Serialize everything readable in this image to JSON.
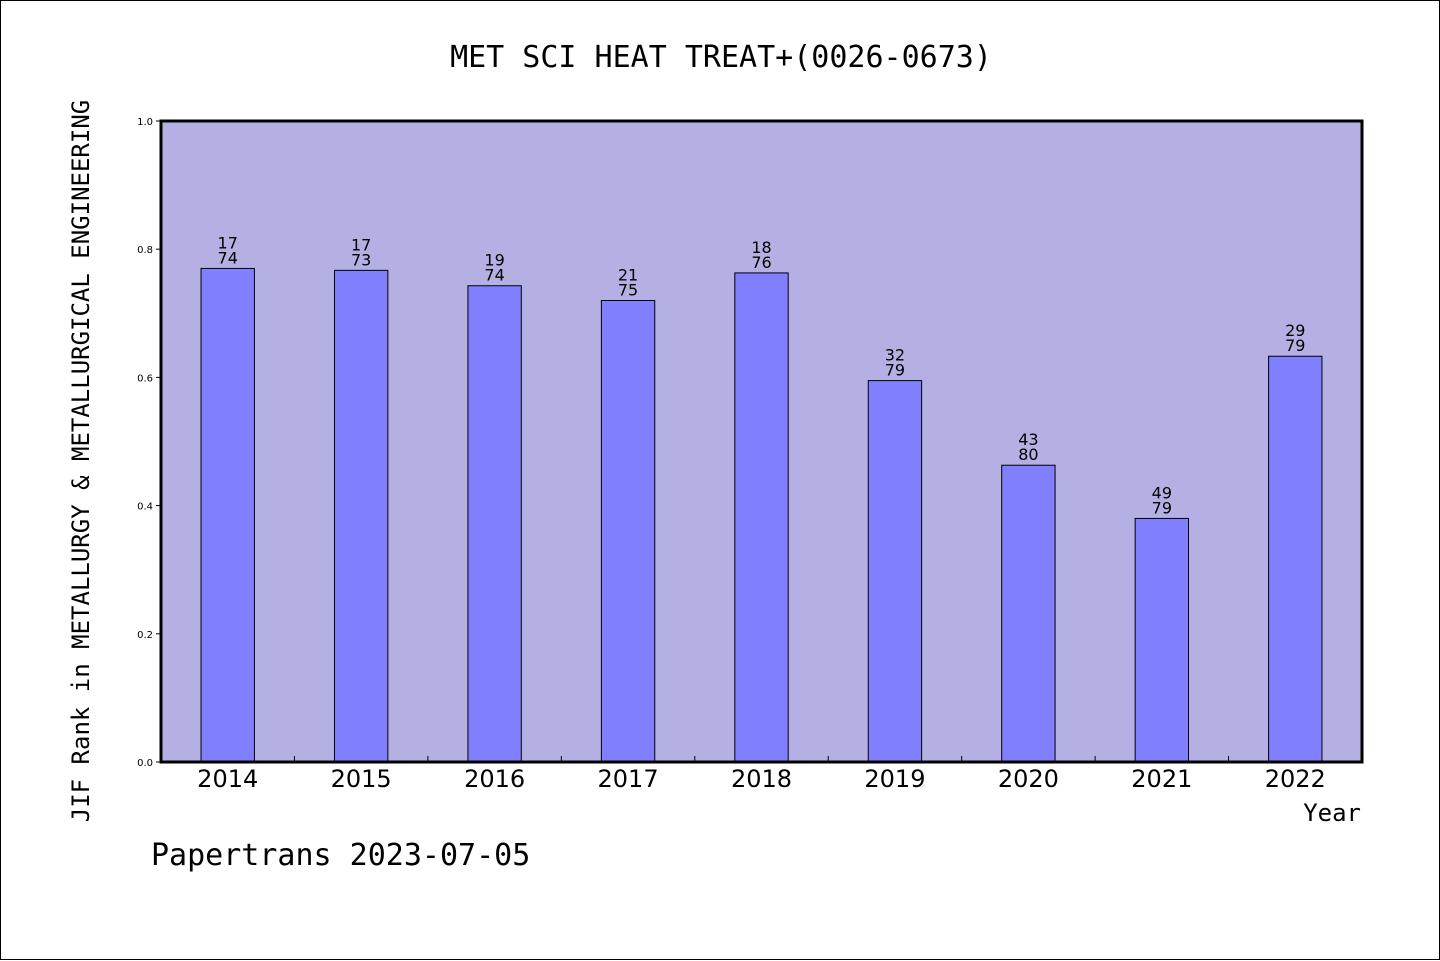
{
  "chart_data": {
    "type": "bar",
    "title": "MET SCI HEAT TREAT+(0026-0673)",
    "xlabel": "Year",
    "ylabel": "JIF Rank in METALLURGY & METALLURGICAL ENGINEERING",
    "ylim": [
      0,
      1.0
    ],
    "yticks": [
      "0.0",
      "0.2",
      "0.4",
      "0.6",
      "0.8",
      "1.0"
    ],
    "categories": [
      "2014",
      "2015",
      "2016",
      "2017",
      "2018",
      "2019",
      "2020",
      "2021",
      "2022"
    ],
    "values": [
      0.77,
      0.767,
      0.743,
      0.72,
      0.763,
      0.595,
      0.463,
      0.38,
      0.633
    ],
    "rank_labels": [
      {
        "rank": "17",
        "total": "74"
      },
      {
        "rank": "17",
        "total": "73"
      },
      {
        "rank": "19",
        "total": "74"
      },
      {
        "rank": "21",
        "total": "75"
      },
      {
        "rank": "18",
        "total": "76"
      },
      {
        "rank": "32",
        "total": "79"
      },
      {
        "rank": "43",
        "total": "80"
      },
      {
        "rank": "49",
        "total": "79"
      },
      {
        "rank": "29",
        "total": "79"
      }
    ],
    "grid": false,
    "colors": {
      "plot_background": "#b5b0e3",
      "bar_fill": "#8080ff",
      "bar_stroke": "#000000"
    }
  },
  "footer": {
    "credit": "Papertrans 2023-07-05"
  }
}
